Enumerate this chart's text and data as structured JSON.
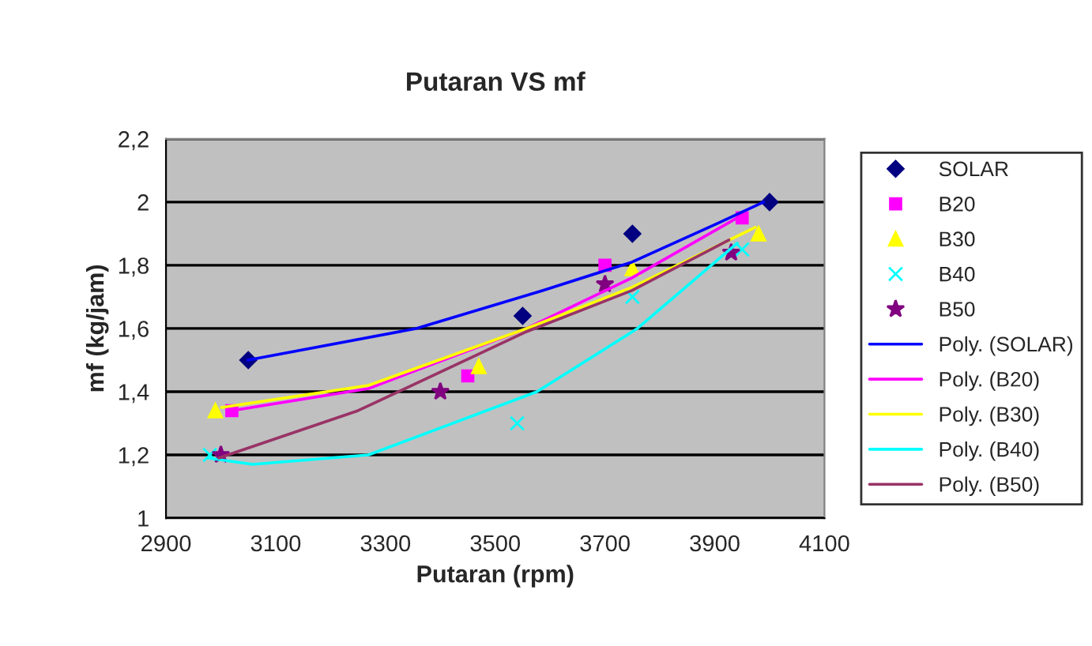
{
  "chart_data": {
    "type": "scatter",
    "title": "Putaran VS mf",
    "xlabel": "Putaran (rpm)",
    "ylabel": "mf (kg/jam)",
    "xlim": [
      2900,
      4100
    ],
    "xticks": [
      2900,
      3100,
      3300,
      3500,
      3700,
      3900,
      4100
    ],
    "ylim": [
      1,
      2.2
    ],
    "yticks": [
      1,
      {
        "value": 1.2,
        "label": "1,2"
      },
      {
        "value": 1.4,
        "label": "1,4"
      },
      {
        "value": 1.6,
        "label": "1,6"
      },
      {
        "value": 1.8,
        "label": "1,8"
      },
      2,
      {
        "value": 2.2,
        "label": "2,2"
      }
    ],
    "grid": "y",
    "legend": "right",
    "series": [
      {
        "name": "SOLAR",
        "marker": "diamond",
        "color": "#000080",
        "x": [
          3050,
          3550,
          3750,
          4000
        ],
        "values": [
          1.5,
          1.64,
          1.9,
          2.0
        ]
      },
      {
        "name": "B20",
        "marker": "square",
        "color": "#ff00ff",
        "x": [
          3020,
          3450,
          3700,
          3950
        ],
        "values": [
          1.34,
          1.45,
          1.8,
          1.95
        ]
      },
      {
        "name": "B30",
        "marker": "triangle",
        "color": "#ffff00",
        "x": [
          2990,
          3470,
          3750,
          3980
        ],
        "values": [
          1.34,
          1.48,
          1.79,
          1.9
        ]
      },
      {
        "name": "B40",
        "marker": "cross",
        "color": "#00ffff",
        "x": [
          2980,
          3540,
          3750,
          3950
        ],
        "values": [
          1.2,
          1.3,
          1.7,
          1.85
        ]
      },
      {
        "name": "B50",
        "marker": "star",
        "color": "#800080",
        "x": [
          3000,
          3400,
          3700,
          3930
        ],
        "values": [
          1.2,
          1.4,
          1.74,
          1.84
        ]
      },
      {
        "name": "Poly. (SOLAR)",
        "type": "line",
        "color": "#0000ff",
        "x": [
          3049,
          3356,
          3586,
          3749,
          3902,
          3989
        ],
        "values": [
          1.5,
          1.6,
          1.72,
          1.81,
          1.93,
          2.0
        ]
      },
      {
        "name": "Poly. (B20)",
        "type": "line",
        "color": "#ff00ff",
        "x": [
          3020,
          3269,
          3557,
          3749,
          3941
        ],
        "values": [
          1.34,
          1.41,
          1.6,
          1.76,
          1.95
        ]
      },
      {
        "name": "Poly. (B30)",
        "type": "line",
        "color": "#ffff00",
        "x": [
          3001,
          3269,
          3557,
          3749,
          3974
        ],
        "values": [
          1.35,
          1.42,
          1.6,
          1.73,
          1.92
        ]
      },
      {
        "name": "Poly. (B40)",
        "type": "line",
        "color": "#00ffff",
        "x": [
          2977,
          3058,
          3269,
          3576,
          3759,
          3941
        ],
        "values": [
          1.19,
          1.17,
          1.2,
          1.4,
          1.6,
          1.87
        ]
      },
      {
        "name": "Poly. (B50)",
        "type": "line",
        "color": "#993366",
        "x": [
          2996,
          3250,
          3557,
          3749,
          3926
        ],
        "values": [
          1.19,
          1.34,
          1.59,
          1.72,
          1.88
        ]
      }
    ]
  }
}
